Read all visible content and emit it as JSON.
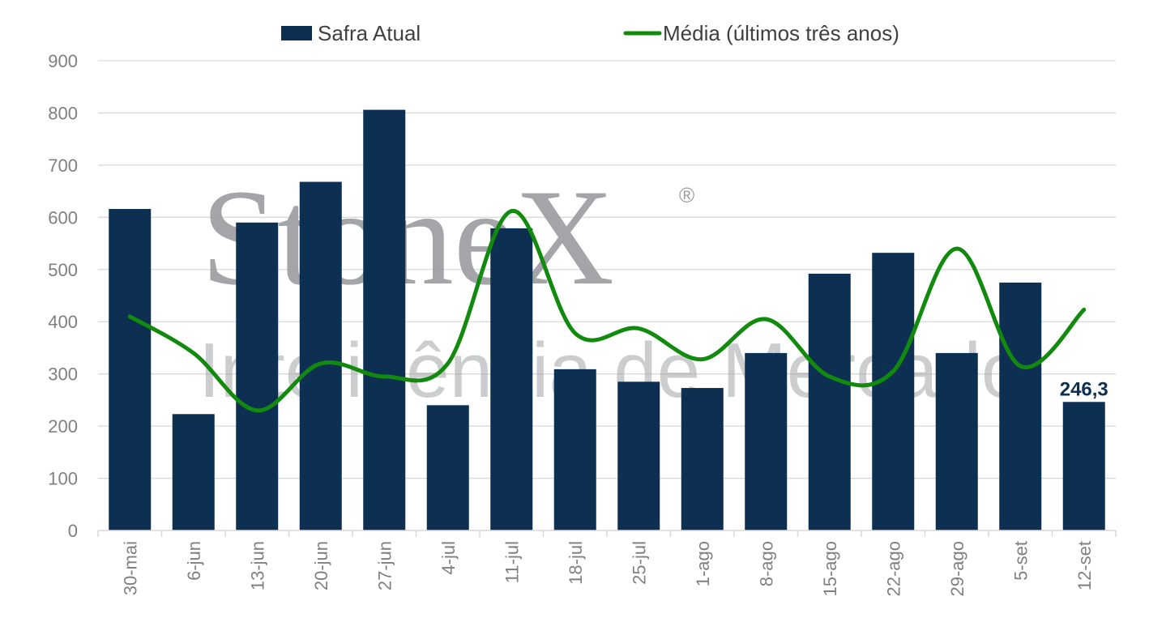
{
  "watermark": {
    "brand": "StoneX",
    "registered": "®",
    "subtitle": "Inteligência de Mercado"
  },
  "colors": {
    "bar": "#0d2f52",
    "line": "#118a0d",
    "grid": "#d9d9d9",
    "axis_text": "#808080"
  },
  "chart_data": {
    "type": "bar",
    "categories": [
      "30-mai",
      "6-jun",
      "13-jun",
      "20-jun",
      "27-jun",
      "4-jul",
      "11-jul",
      "18-jul",
      "25-jul",
      "1-ago",
      "8-ago",
      "15-ago",
      "22-ago",
      "29-ago",
      "5-set",
      "12-set"
    ],
    "series": [
      {
        "name": "Safra Atual",
        "type": "bar",
        "color": "#0d2f52",
        "values": [
          616,
          223,
          590,
          668,
          806,
          240,
          579,
          309,
          285,
          273,
          340,
          492,
          532,
          340,
          475,
          246.3
        ]
      },
      {
        "name": "Média (últimos três anos)",
        "type": "line",
        "smooth": true,
        "color": "#118a0d",
        "values": [
          410,
          340,
          230,
          320,
          295,
          320,
          612,
          378,
          387,
          328,
          405,
          295,
          305,
          540,
          315,
          423
        ]
      }
    ],
    "data_labels": [
      {
        "category": "12-set",
        "text": "246,3"
      }
    ],
    "ylim": [
      0,
      900
    ],
    "yticks": [
      "0",
      "100",
      "200",
      "300",
      "400",
      "500",
      "600",
      "700",
      "800",
      "900"
    ],
    "grid": true,
    "legend_position": "top",
    "xlabel": "",
    "ylabel": "",
    "title": ""
  }
}
